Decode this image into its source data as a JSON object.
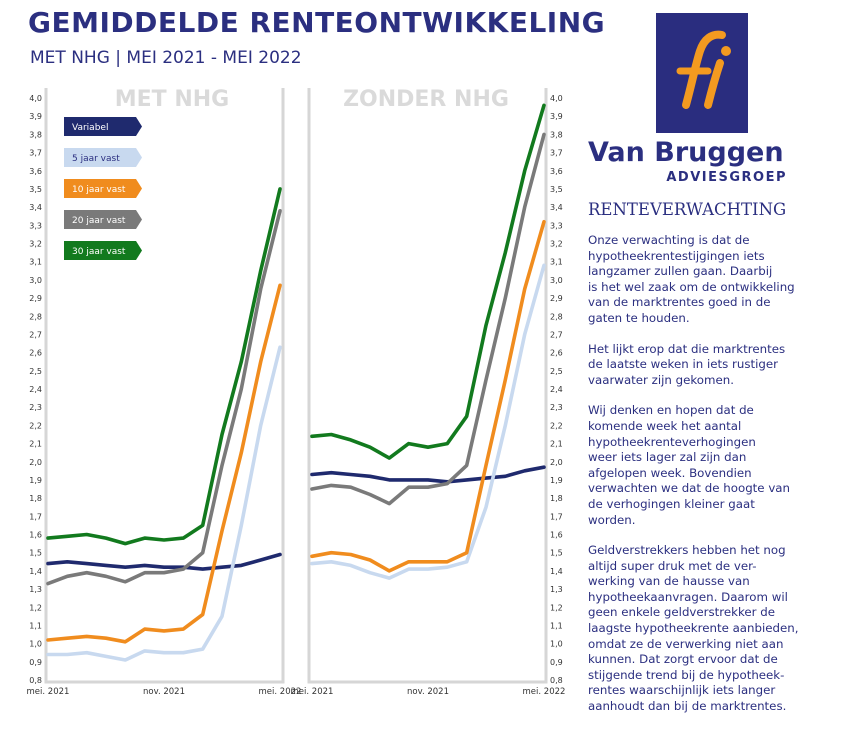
{
  "header": {
    "title": "GEMIDDELDE RENTEONTWIKKELING",
    "subtitle": "MET NHG | MEI 2021 - MEI 2022"
  },
  "brand": {
    "name": "Van Bruggen",
    "sub": "ADVIESGROEP",
    "color": "#2b2f80",
    "logo_color": "#2a2d7f",
    "logo_accent": "#f39a20"
  },
  "sidebar": {
    "heading": "RENTEVERWACHTING",
    "paragraphs": [
      "Onze verwachting is dat de\nhypotheekrentestijgingen iets\nlangzamer zullen gaan. Daarbij\nis het wel zaak om de ontwikkeling\nvan de marktrentes goed in de\ngaten te houden.",
      "Het lijkt erop dat die marktrentes\nde laatste weken in iets rustiger\nvaarwater zijn gekomen.",
      "Wij denken en hopen dat de\nkomende week het aantal\nhypotheekrenteverhogingen\nweer iets lager zal zijn dan\nafgelopen week. Bovendien\nverwachten we dat de hoogte van\nde verhogingen kleiner gaat\nworden.",
      "Geldverstrekkers hebben het nog\naltijd super druk met de ver-\nwerking van de hausse van\nhypotheekaanvragen. Daarom wil\ngeen enkele geldverstrekker de\nlaagste hypotheekrente aanbieden,\nomdat ze de verwerking niet aan\nkunnen. Dat zorgt ervoor dat de\nstijgende trend bij de hypotheek-\nrentes  waarschijnlijk iets langer\naanhoudt dan bij de marktrentes."
    ]
  },
  "chart_data": [
    {
      "type": "line",
      "title": "MET NHG",
      "x": [
        "mei. 2021",
        "jun. 2021",
        "jul. 2021",
        "aug. 2021",
        "sep. 2021",
        "okt. 2021",
        "nov. 2021",
        "dec. 2021",
        "jan. 2022",
        "feb. 2022",
        "mrt. 2022",
        "apr. 2022",
        "mei. 2022"
      ],
      "x_tick_labels": [
        "mei. 2021",
        "nov. 2021",
        "mei. 2022"
      ],
      "ylim": [
        0.8,
        4.0
      ],
      "y_tick_labels": [
        "0,8",
        "0,9",
        "1,0",
        "1,1",
        "1,2",
        "1,3",
        "1,4",
        "1,5",
        "1,6",
        "1,7",
        "1,8",
        "1,9",
        "2,0",
        "2,1",
        "2,2",
        "2,3",
        "2,4",
        "2,5",
        "2,6",
        "2,7",
        "2,8",
        "2,9",
        "3,0",
        "3,1",
        "3,2",
        "3,3",
        "3,4",
        "3,5",
        "3,6",
        "3,7",
        "3,8",
        "3,9",
        "4,0"
      ],
      "grid": false,
      "legend": "top-left",
      "series": [
        {
          "name": "Variabel",
          "color": "#1f2a6e",
          "values": [
            1.44,
            1.45,
            1.44,
            1.43,
            1.42,
            1.43,
            1.42,
            1.42,
            1.41,
            1.42,
            1.43,
            1.46,
            1.49
          ]
        },
        {
          "name": "5 jaar vast",
          "color": "#c8d9ef",
          "values": [
            0.94,
            0.94,
            0.95,
            0.93,
            0.91,
            0.96,
            0.95,
            0.95,
            0.97,
            1.15,
            1.65,
            2.2,
            2.63
          ]
        },
        {
          "name": "10 jaar vast",
          "color": "#f08c1e",
          "values": [
            1.02,
            1.03,
            1.04,
            1.03,
            1.01,
            1.08,
            1.07,
            1.08,
            1.16,
            1.62,
            2.05,
            2.55,
            2.97
          ]
        },
        {
          "name": "20 jaar vast",
          "color": "#7a7a7a",
          "values": [
            1.33,
            1.37,
            1.39,
            1.37,
            1.34,
            1.39,
            1.39,
            1.41,
            1.5,
            1.98,
            2.4,
            2.95,
            3.38
          ]
        },
        {
          "name": "30 jaar vast",
          "color": "#127a1e",
          "values": [
            1.58,
            1.59,
            1.6,
            1.58,
            1.55,
            1.58,
            1.57,
            1.58,
            1.65,
            2.15,
            2.55,
            3.05,
            3.5
          ]
        }
      ]
    },
    {
      "type": "line",
      "title": "ZONDER NHG",
      "x": [
        "mei. 2021",
        "jun. 2021",
        "jul. 2021",
        "aug. 2021",
        "sep. 2021",
        "okt. 2021",
        "nov. 2021",
        "dec. 2021",
        "jan. 2022",
        "feb. 2022",
        "mrt. 2022",
        "apr. 2022",
        "mei. 2022"
      ],
      "x_tick_labels": [
        "mei. 2021",
        "nov. 2021",
        "mei. 2022"
      ],
      "ylim": [
        0.8,
        4.0
      ],
      "y_tick_labels": [
        "0,8",
        "0,9",
        "1,0",
        "1,1",
        "1,2",
        "1,3",
        "1,4",
        "1,5",
        "1,6",
        "1,7",
        "1,8",
        "1,9",
        "2,0",
        "2,1",
        "2,2",
        "2,3",
        "2,4",
        "2,5",
        "2,6",
        "2,7",
        "2,8",
        "2,9",
        "3,0",
        "3,1",
        "3,2",
        "3,3",
        "3,4",
        "3,5",
        "3,6",
        "3,7",
        "3,8",
        "3,9",
        "4,0"
      ],
      "grid": false,
      "legend": "none",
      "series": [
        {
          "name": "Variabel",
          "color": "#1f2a6e",
          "values": [
            1.93,
            1.94,
            1.93,
            1.92,
            1.9,
            1.9,
            1.9,
            1.89,
            1.9,
            1.91,
            1.92,
            1.95,
            1.97
          ]
        },
        {
          "name": "5 jaar vast",
          "color": "#c8d9ef",
          "values": [
            1.44,
            1.45,
            1.43,
            1.39,
            1.36,
            1.41,
            1.41,
            1.42,
            1.45,
            1.75,
            2.2,
            2.7,
            3.08
          ]
        },
        {
          "name": "10 jaar vast",
          "color": "#f08c1e",
          "values": [
            1.48,
            1.5,
            1.49,
            1.46,
            1.4,
            1.45,
            1.45,
            1.45,
            1.5,
            1.98,
            2.45,
            2.95,
            3.32
          ]
        },
        {
          "name": "20 jaar vast",
          "color": "#7a7a7a",
          "values": [
            1.85,
            1.87,
            1.86,
            1.82,
            1.77,
            1.86,
            1.86,
            1.88,
            1.98,
            2.45,
            2.9,
            3.4,
            3.8
          ]
        },
        {
          "name": "30 jaar vast",
          "color": "#127a1e",
          "values": [
            2.14,
            2.15,
            2.12,
            2.08,
            2.02,
            2.1,
            2.08,
            2.1,
            2.25,
            2.75,
            3.15,
            3.6,
            3.96
          ]
        }
      ]
    }
  ]
}
